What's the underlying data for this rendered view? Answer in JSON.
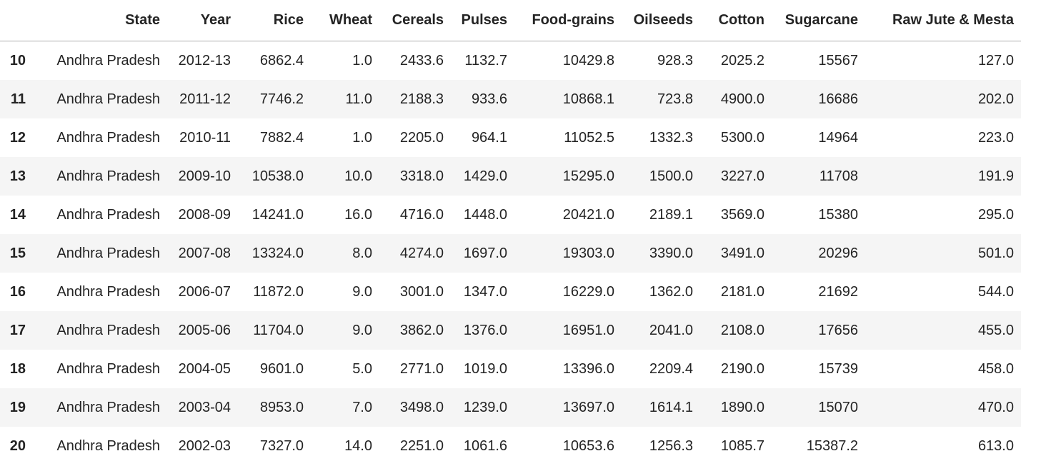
{
  "table": {
    "columns": [
      "",
      "State",
      "Year",
      "Rice",
      "Wheat",
      "Cereals",
      "Pulses",
      "Food-grains",
      "Oilseeds",
      "Cotton",
      "Sugarcane",
      "Raw Jute & Mesta"
    ],
    "rows": [
      {
        "index": "10",
        "cells": [
          "Andhra Pradesh",
          "2012-13",
          "6862.4",
          "1.0",
          "2433.6",
          "1132.7",
          "10429.8",
          "928.3",
          "2025.2",
          "15567",
          "127.0"
        ]
      },
      {
        "index": "11",
        "cells": [
          "Andhra Pradesh",
          "2011-12",
          "7746.2",
          "11.0",
          "2188.3",
          "933.6",
          "10868.1",
          "723.8",
          "4900.0",
          "16686",
          "202.0"
        ]
      },
      {
        "index": "12",
        "cells": [
          "Andhra Pradesh",
          "2010-11",
          "7882.4",
          "1.0",
          "2205.0",
          "964.1",
          "11052.5",
          "1332.3",
          "5300.0",
          "14964",
          "223.0"
        ]
      },
      {
        "index": "13",
        "cells": [
          "Andhra Pradesh",
          "2009-10",
          "10538.0",
          "10.0",
          "3318.0",
          "1429.0",
          "15295.0",
          "1500.0",
          "3227.0",
          "11708",
          "191.9"
        ]
      },
      {
        "index": "14",
        "cells": [
          "Andhra Pradesh",
          "2008-09",
          "14241.0",
          "16.0",
          "4716.0",
          "1448.0",
          "20421.0",
          "2189.1",
          "3569.0",
          "15380",
          "295.0"
        ]
      },
      {
        "index": "15",
        "cells": [
          "Andhra Pradesh",
          "2007-08",
          "13324.0",
          "8.0",
          "4274.0",
          "1697.0",
          "19303.0",
          "3390.0",
          "3491.0",
          "20296",
          "501.0"
        ]
      },
      {
        "index": "16",
        "cells": [
          "Andhra Pradesh",
          "2006-07",
          "11872.0",
          "9.0",
          "3001.0",
          "1347.0",
          "16229.0",
          "1362.0",
          "2181.0",
          "21692",
          "544.0"
        ]
      },
      {
        "index": "17",
        "cells": [
          "Andhra Pradesh",
          "2005-06",
          "11704.0",
          "9.0",
          "3862.0",
          "1376.0",
          "16951.0",
          "2041.0",
          "2108.0",
          "17656",
          "455.0"
        ]
      },
      {
        "index": "18",
        "cells": [
          "Andhra Pradesh",
          "2004-05",
          "9601.0",
          "5.0",
          "2771.0",
          "1019.0",
          "13396.0",
          "2209.4",
          "2190.0",
          "15739",
          "458.0"
        ]
      },
      {
        "index": "19",
        "cells": [
          "Andhra Pradesh",
          "2003-04",
          "8953.0",
          "7.0",
          "3498.0",
          "1239.0",
          "13697.0",
          "1614.1",
          "1890.0",
          "15070",
          "470.0"
        ]
      },
      {
        "index": "20",
        "cells": [
          "Andhra Pradesh",
          "2002-03",
          "7327.0",
          "14.0",
          "2251.0",
          "1061.6",
          "10653.6",
          "1256.3",
          "1085.7",
          "15387.2",
          "613.0"
        ]
      }
    ],
    "colors": {
      "text": "#242424",
      "stripe": "#f5f5f5",
      "header_border": "#ababab",
      "background": "#ffffff"
    }
  }
}
